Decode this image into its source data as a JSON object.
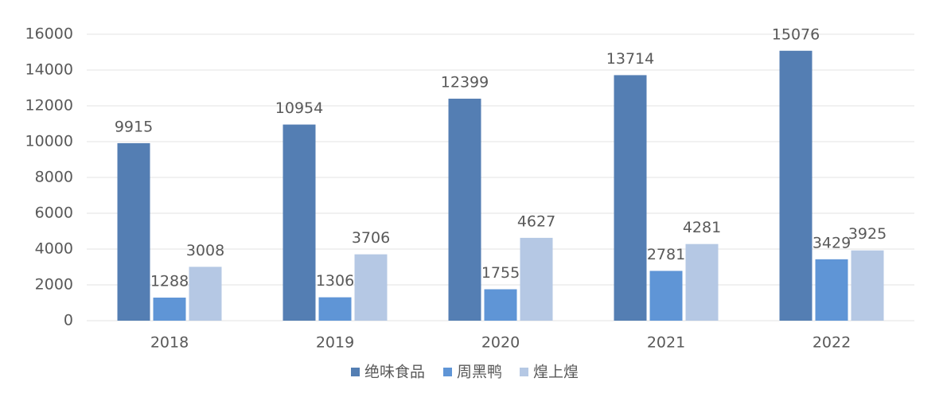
{
  "chart_data": {
    "type": "bar",
    "categories": [
      "2018",
      "2019",
      "2020",
      "2021",
      "2022"
    ],
    "series": [
      {
        "name": "绝味食品",
        "color": "#547eb3",
        "values": [
          9915,
          10954,
          12399,
          13714,
          15076
        ]
      },
      {
        "name": "周黑鸭",
        "color": "#5f95d6",
        "values": [
          1288,
          1306,
          1755,
          2781,
          3429
        ]
      },
      {
        "name": "煌上煌",
        "color": "#b5c8e4",
        "values": [
          3008,
          3706,
          4627,
          4281,
          3925
        ]
      }
    ],
    "ylim": [
      0,
      16000
    ],
    "yticks": [
      0,
      2000,
      4000,
      6000,
      8000,
      10000,
      12000,
      14000,
      16000
    ],
    "grid": true,
    "legend": "bottom"
  }
}
